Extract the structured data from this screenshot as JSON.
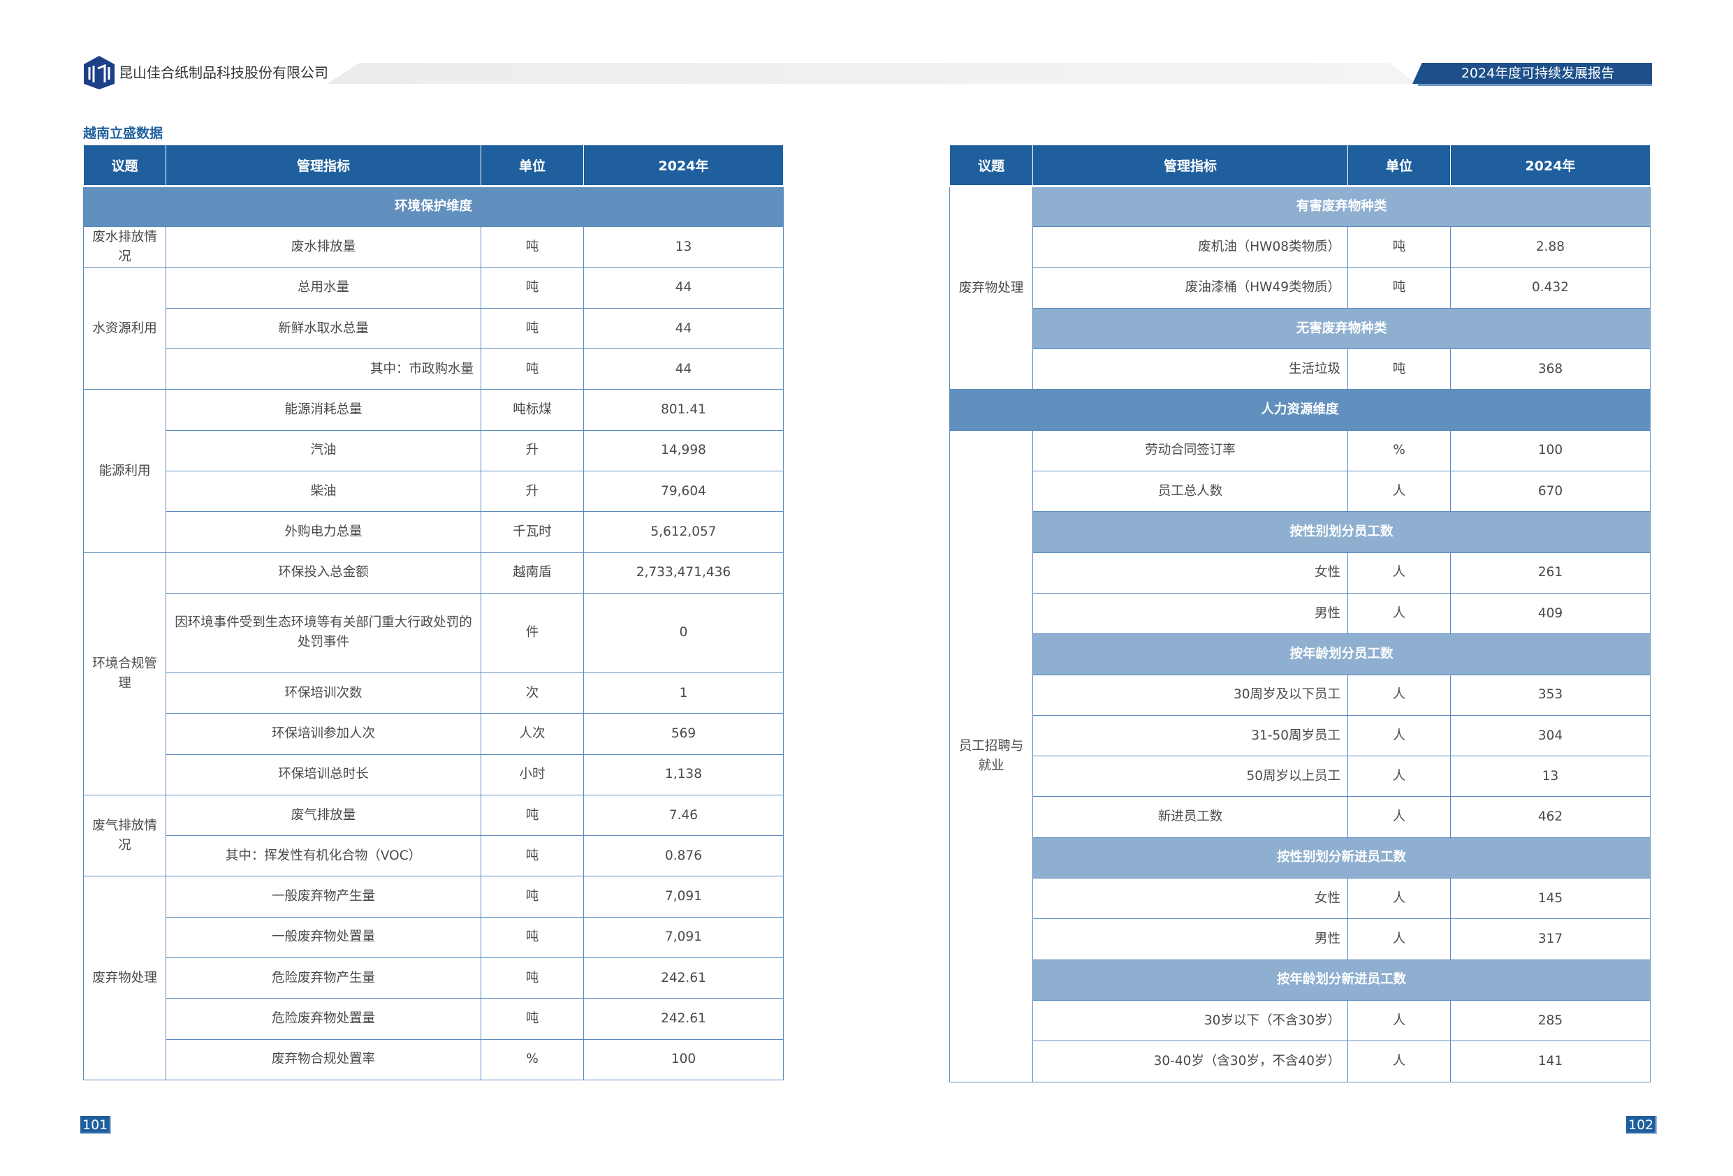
{
  "header": {
    "company": "昆山佳合纸制品科技股份有限公司",
    "report_title": "2024年度可持续发展报告",
    "logo_text": "SM"
  },
  "subtitle": "越南立盛数据",
  "columns": [
    "议题",
    "管理指标",
    "单位",
    "2024年"
  ],
  "left_table": [
    {
      "section": "环境保护维度"
    },
    {
      "topic": "废水排放情况",
      "items": [
        {
          "indicator": "废水排放量",
          "unit": "吨",
          "value": "13"
        }
      ]
    },
    {
      "topic": "水资源利用",
      "items": [
        {
          "indicator": "总用水量",
          "unit": "吨",
          "value": "44"
        },
        {
          "indicator": "新鲜水取水总量",
          "unit": "吨",
          "value": "44"
        },
        {
          "indicator": "其中：市政购水量",
          "unit": "吨",
          "value": "44",
          "align": "right"
        }
      ]
    },
    {
      "topic": "能源利用",
      "items": [
        {
          "indicator": "能源消耗总量",
          "unit": "吨标煤",
          "value": "801.41"
        },
        {
          "indicator": "汽油",
          "unit": "升",
          "value": "14,998"
        },
        {
          "indicator": "柴油",
          "unit": "升",
          "value": "79,604"
        },
        {
          "indicator": "外购电力总量",
          "unit": "千瓦时",
          "value": "5,612,057"
        }
      ]
    },
    {
      "topic": "环境合规管理",
      "items": [
        {
          "indicator": "环保投入总金额",
          "unit": "越南盾",
          "value": "2,733,471,436"
        },
        {
          "indicator": "因环境事件受到生态环境等有关部门重大行政处罚的处罚事件",
          "unit": "件",
          "value": "0",
          "tall": true
        },
        {
          "indicator": "环保培训次数",
          "unit": "次",
          "value": "1"
        },
        {
          "indicator": "环保培训参加人次",
          "unit": "人次",
          "value": "569"
        },
        {
          "indicator": "环保培训总时长",
          "unit": "小时",
          "value": "1,138"
        }
      ]
    },
    {
      "topic": "废气排放情况",
      "items": [
        {
          "indicator": "废气排放量",
          "unit": "吨",
          "value": "7.46"
        },
        {
          "indicator": "其中：挥发性有机化合物（VOC）",
          "unit": "吨",
          "value": "0.876"
        }
      ]
    },
    {
      "topic": "废弃物处理",
      "items": [
        {
          "indicator": "一般废弃物产生量",
          "unit": "吨",
          "value": "7,091"
        },
        {
          "indicator": "一般废弃物处置量",
          "unit": "吨",
          "value": "7,091"
        },
        {
          "indicator": "危险废弃物产生量",
          "unit": "吨",
          "value": "242.61"
        },
        {
          "indicator": "危险废弃物处置量",
          "unit": "吨",
          "value": "242.61"
        },
        {
          "indicator": "废弃物合规处置率",
          "unit": "%",
          "value": "100"
        }
      ]
    }
  ],
  "right_table": [
    {
      "topic": "废弃物处理",
      "items": [
        {
          "sub": "有害废弃物种类"
        },
        {
          "indicator": "废机油（HW08类物质）",
          "unit": "吨",
          "value": "2.88",
          "align": "right"
        },
        {
          "indicator": "废油漆桶（HW49类物质）",
          "unit": "吨",
          "value": "0.432",
          "align": "right"
        },
        {
          "sub": "无害废弃物种类"
        },
        {
          "indicator": "生活垃圾",
          "unit": "吨",
          "value": "368",
          "align": "right"
        }
      ]
    },
    {
      "section": "人力资源维度"
    },
    {
      "topic": "员工招聘与就业",
      "items": [
        {
          "indicator": "劳动合同签订率",
          "unit": "%",
          "value": "100"
        },
        {
          "indicator": "员工总人数",
          "unit": "人",
          "value": "670"
        },
        {
          "sub": "按性别划分员工数"
        },
        {
          "indicator": "女性",
          "unit": "人",
          "value": "261",
          "align": "right"
        },
        {
          "indicator": "男性",
          "unit": "人",
          "value": "409",
          "align": "right"
        },
        {
          "sub": "按年龄划分员工数"
        },
        {
          "indicator": "30周岁及以下员工",
          "unit": "人",
          "value": "353",
          "align": "right"
        },
        {
          "indicator": "31-50周岁员工",
          "unit": "人",
          "value": "304",
          "align": "right"
        },
        {
          "indicator": "50周岁以上员工",
          "unit": "人",
          "value": "13",
          "align": "right"
        },
        {
          "indicator": "新进员工数",
          "unit": "人",
          "value": "462"
        },
        {
          "sub": "按性别划分新进员工数"
        },
        {
          "indicator": "女性",
          "unit": "人",
          "value": "145",
          "align": "right"
        },
        {
          "indicator": "男性",
          "unit": "人",
          "value": "317",
          "align": "right"
        },
        {
          "sub": "按年龄划分新进员工数"
        },
        {
          "indicator": "30岁以下（不含30岁）",
          "unit": "人",
          "value": "285",
          "align": "right"
        },
        {
          "indicator": "30-40岁（含30岁，不含40岁）",
          "unit": "人",
          "value": "141",
          "align": "right"
        }
      ]
    }
  ],
  "page_numbers": {
    "left": "101",
    "right": "102"
  },
  "colors": {
    "header": "#1f5f9e",
    "section": "#6190bf",
    "subheader": "#8eafd0",
    "border": "#5b8ac0"
  }
}
